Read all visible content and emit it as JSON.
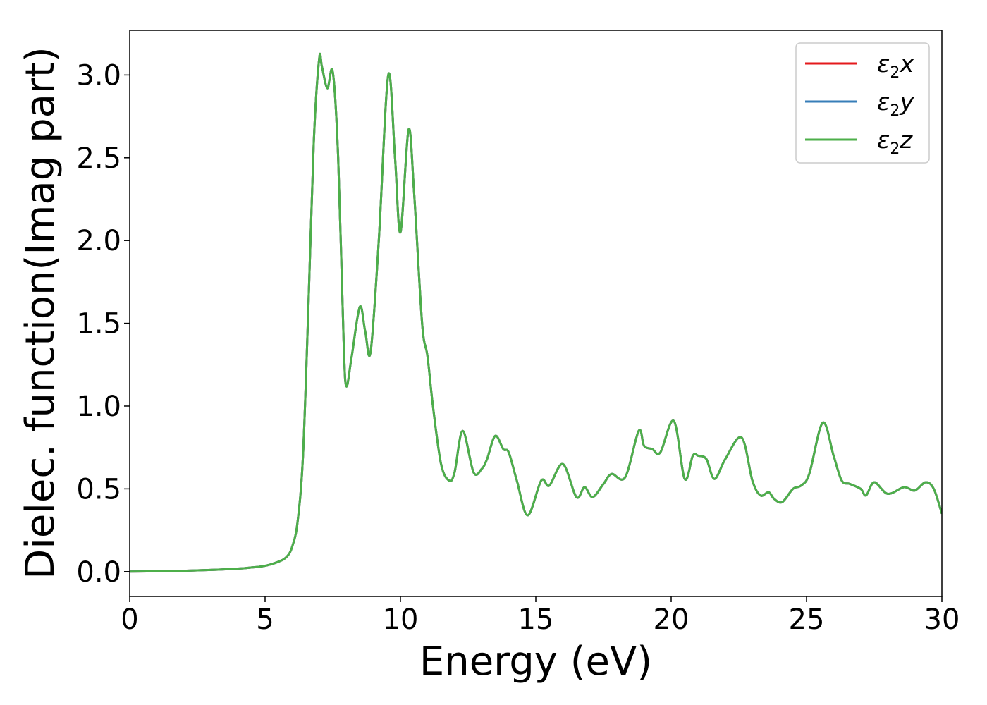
{
  "chart_data": {
    "type": "line",
    "title": "",
    "xlabel": "Energy (eV)",
    "ylabel": "Dielec. function(Imag part)",
    "xlim": [
      0,
      30
    ],
    "ylim": [
      -0.15,
      3.27
    ],
    "xticks": [
      0,
      5,
      10,
      15,
      20,
      25,
      30
    ],
    "xtick_labels": [
      "0",
      "5",
      "10",
      "15",
      "20",
      "25",
      "30"
    ],
    "yticks": [
      0.0,
      0.5,
      1.0,
      1.5,
      2.0,
      2.5,
      3.0
    ],
    "ytick_labels": [
      "0.0",
      "0.5",
      "1.0",
      "1.5",
      "2.0",
      "2.5",
      "3.0"
    ],
    "grid": false,
    "legend_position": "top-right",
    "colors": {
      "eps2x": "#e41a1c",
      "eps2y": "#377eb8",
      "eps2z": "#4daf4a"
    },
    "x": [
      0,
      1,
      2,
      3,
      4,
      4.5,
      5,
      5.5,
      5.8,
      6.0,
      6.2,
      6.4,
      6.6,
      6.8,
      7.0,
      7.1,
      7.3,
      7.5,
      7.7,
      7.9,
      8.0,
      8.2,
      8.5,
      8.7,
      8.9,
      9.2,
      9.55,
      9.8,
      10.0,
      10.3,
      10.5,
      10.8,
      11.0,
      11.2,
      11.5,
      11.8,
      12.0,
      12.3,
      12.7,
      13.0,
      13.2,
      13.5,
      13.8,
      14.0,
      14.3,
      14.7,
      15.2,
      15.5,
      16.0,
      16.5,
      16.8,
      17.1,
      17.5,
      17.8,
      18.3,
      18.8,
      19.0,
      19.3,
      19.6,
      20.1,
      20.5,
      20.8,
      21.0,
      21.3,
      21.6,
      22.0,
      22.6,
      23.0,
      23.3,
      23.6,
      23.8,
      24.1,
      24.5,
      24.8,
      25.1,
      25.6,
      26.0,
      26.3,
      26.6,
      27.0,
      27.2,
      27.5,
      28.0,
      28.6,
      29.0,
      29.4,
      29.7,
      30
    ],
    "series": [
      {
        "name": "ε2x",
        "values": [
          0,
          0.002,
          0.005,
          0.01,
          0.018,
          0.025,
          0.035,
          0.06,
          0.09,
          0.15,
          0.3,
          0.7,
          1.6,
          2.6,
          3.1,
          3.05,
          2.92,
          3.02,
          2.5,
          1.4,
          1.12,
          1.3,
          1.6,
          1.45,
          1.33,
          2.0,
          3.0,
          2.5,
          2.05,
          2.67,
          2.3,
          1.5,
          1.3,
          1.0,
          0.65,
          0.55,
          0.6,
          0.85,
          0.6,
          0.62,
          0.68,
          0.82,
          0.74,
          0.72,
          0.55,
          0.34,
          0.55,
          0.52,
          0.65,
          0.45,
          0.51,
          0.45,
          0.53,
          0.59,
          0.57,
          0.85,
          0.76,
          0.74,
          0.72,
          0.91,
          0.56,
          0.7,
          0.7,
          0.68,
          0.56,
          0.68,
          0.81,
          0.55,
          0.46,
          0.48,
          0.44,
          0.42,
          0.5,
          0.52,
          0.59,
          0.9,
          0.7,
          0.55,
          0.53,
          0.5,
          0.46,
          0.54,
          0.47,
          0.51,
          0.49,
          0.54,
          0.5,
          0.35
        ]
      },
      {
        "name": "ε2y",
        "values": [
          0,
          0.002,
          0.005,
          0.01,
          0.018,
          0.025,
          0.035,
          0.06,
          0.09,
          0.15,
          0.3,
          0.7,
          1.6,
          2.6,
          3.1,
          3.05,
          2.92,
          3.02,
          2.5,
          1.4,
          1.12,
          1.3,
          1.6,
          1.45,
          1.33,
          2.0,
          3.0,
          2.5,
          2.05,
          2.67,
          2.3,
          1.5,
          1.3,
          1.0,
          0.65,
          0.55,
          0.6,
          0.85,
          0.6,
          0.62,
          0.68,
          0.82,
          0.74,
          0.72,
          0.55,
          0.34,
          0.55,
          0.52,
          0.65,
          0.45,
          0.51,
          0.45,
          0.53,
          0.59,
          0.57,
          0.85,
          0.76,
          0.74,
          0.72,
          0.91,
          0.56,
          0.7,
          0.7,
          0.68,
          0.56,
          0.68,
          0.81,
          0.55,
          0.46,
          0.48,
          0.44,
          0.42,
          0.5,
          0.52,
          0.59,
          0.9,
          0.7,
          0.55,
          0.53,
          0.5,
          0.46,
          0.54,
          0.47,
          0.51,
          0.49,
          0.54,
          0.5,
          0.35
        ]
      },
      {
        "name": "ε2z",
        "values": [
          0,
          0.002,
          0.005,
          0.01,
          0.018,
          0.025,
          0.035,
          0.06,
          0.09,
          0.15,
          0.3,
          0.7,
          1.6,
          2.6,
          3.1,
          3.05,
          2.92,
          3.02,
          2.5,
          1.4,
          1.12,
          1.3,
          1.6,
          1.45,
          1.33,
          2.0,
          3.0,
          2.5,
          2.05,
          2.67,
          2.3,
          1.5,
          1.3,
          1.0,
          0.65,
          0.55,
          0.6,
          0.85,
          0.6,
          0.62,
          0.68,
          0.82,
          0.74,
          0.72,
          0.55,
          0.34,
          0.55,
          0.52,
          0.65,
          0.45,
          0.51,
          0.45,
          0.53,
          0.59,
          0.57,
          0.85,
          0.76,
          0.74,
          0.72,
          0.91,
          0.56,
          0.7,
          0.7,
          0.68,
          0.56,
          0.68,
          0.81,
          0.55,
          0.46,
          0.48,
          0.44,
          0.42,
          0.5,
          0.52,
          0.59,
          0.9,
          0.7,
          0.55,
          0.53,
          0.5,
          0.46,
          0.54,
          0.47,
          0.51,
          0.49,
          0.54,
          0.5,
          0.35
        ]
      }
    ],
    "legend": [
      {
        "symbol": "ε",
        "sub": "2",
        "var": "x",
        "color_key": "eps2x"
      },
      {
        "symbol": "ε",
        "sub": "2",
        "var": "y",
        "color_key": "eps2y"
      },
      {
        "symbol": "ε",
        "sub": "2",
        "var": "z",
        "color_key": "eps2z"
      }
    ]
  }
}
